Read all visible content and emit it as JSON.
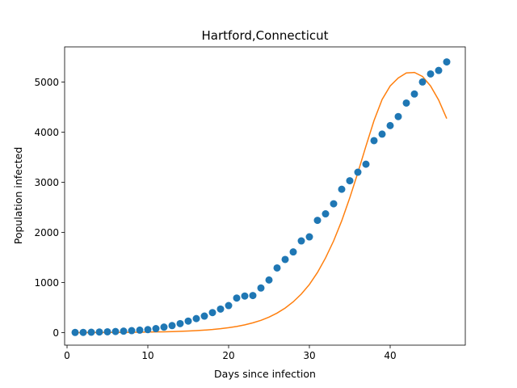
{
  "chart_data": {
    "type": "scatter",
    "title": "Hartford,Connecticut",
    "xlabel": "Days since infection",
    "ylabel": "Population infected",
    "xlim": [
      -0.3,
      49.3
    ],
    "ylim": [
      -250,
      5700
    ],
    "xticks": [
      0,
      10,
      20,
      30,
      40
    ],
    "yticks": [
      0,
      1000,
      2000,
      3000,
      4000,
      5000
    ],
    "xtick_labels": [
      "0",
      "10",
      "20",
      "30",
      "40"
    ],
    "ytick_labels": [
      "0",
      "1000",
      "2000",
      "3000",
      "4000",
      "5000"
    ],
    "grid": false,
    "legend": "none",
    "series": [
      {
        "kind": "scatter",
        "color": "#1f77b4",
        "x": [
          1,
          2,
          3,
          4,
          5,
          6,
          7,
          8,
          9,
          10,
          11,
          12,
          13,
          14,
          15,
          16,
          17,
          18,
          19,
          20,
          21,
          22,
          23,
          24,
          25,
          26,
          27,
          28,
          29,
          30,
          31,
          32,
          33,
          34,
          35,
          36,
          37,
          38,
          39,
          40,
          41,
          42,
          43,
          44,
          45,
          46,
          47
        ],
        "y": [
          3,
          5,
          8,
          12,
          17,
          22,
          30,
          40,
          50,
          60,
          80,
          110,
          140,
          180,
          230,
          280,
          330,
          400,
          470,
          540,
          690,
          730,
          740,
          890,
          1050,
          1290,
          1460,
          1610,
          1830,
          1910,
          2240,
          2370,
          2570,
          2860,
          3030,
          3200,
          3360,
          3830,
          3960,
          4130,
          4310,
          4580,
          4760,
          5000,
          5160,
          5230,
          5400
        ]
      },
      {
        "kind": "line",
        "color": "#ff7f0e",
        "x": [
          1,
          2,
          3,
          4,
          5,
          6,
          7,
          8,
          9,
          10,
          11,
          12,
          13,
          14,
          15,
          16,
          17,
          18,
          19,
          20,
          21,
          22,
          23,
          24,
          25,
          26,
          27,
          28,
          29,
          30,
          31,
          32,
          33,
          34,
          35,
          36,
          37,
          38,
          39,
          40,
          41,
          42,
          43,
          44,
          45,
          46,
          47
        ],
        "y": [
          0,
          0,
          1,
          2,
          3,
          4,
          5,
          7,
          9,
          11,
          14,
          17,
          21,
          26,
          32,
          40,
          50,
          62,
          78,
          98,
          123,
          155,
          195,
          245,
          310,
          390,
          490,
          615,
          770,
          960,
          1200,
          1490,
          1830,
          2230,
          2690,
          3190,
          3720,
          4230,
          4650,
          4920,
          5080,
          5180,
          5190,
          5110,
          4920,
          4640,
          4270
        ]
      }
    ]
  }
}
